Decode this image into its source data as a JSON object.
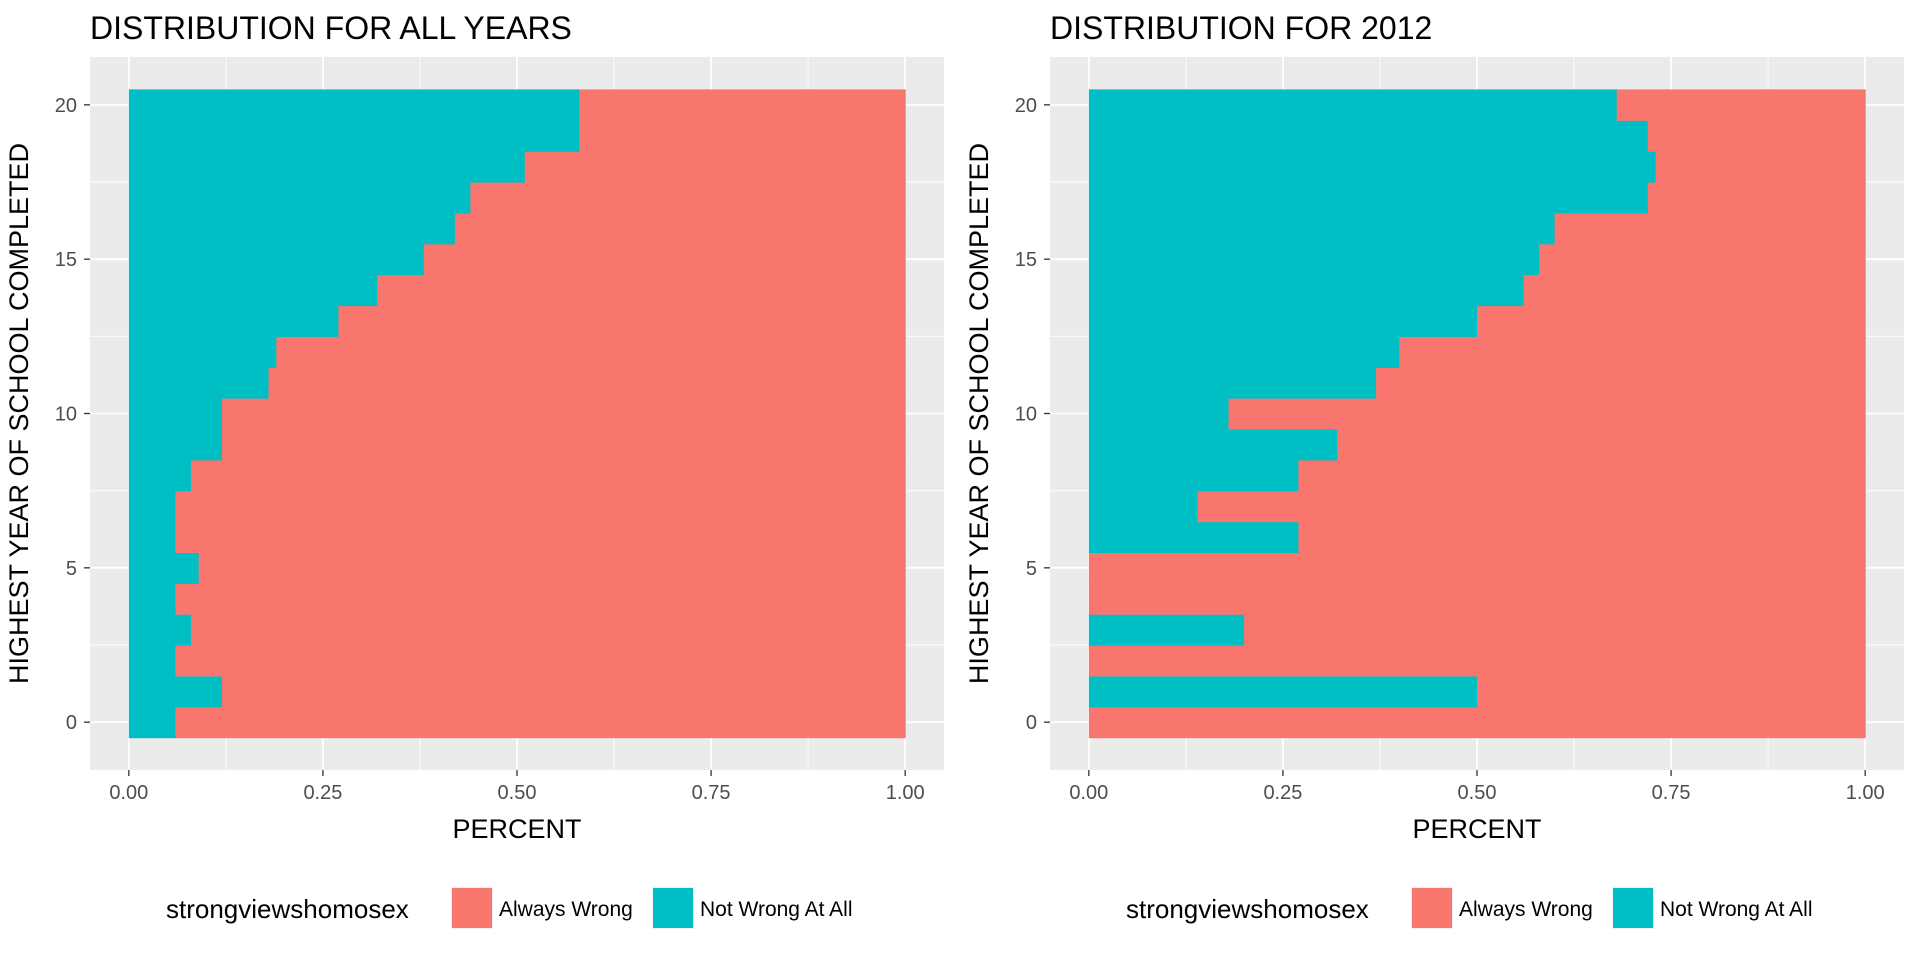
{
  "chart_data": [
    {
      "type": "bar",
      "orientation": "horizontal",
      "stacked": "fill",
      "title": "DISTRIBUTION FOR ALL YEARS",
      "xlabel": "PERCENT",
      "ylabel": "HIGHEST YEAR OF SCHOOL COMPLETED",
      "xlim": [
        0,
        1
      ],
      "ylim": [
        0,
        20
      ],
      "x_ticks": [
        "0.00",
        "0.25",
        "0.50",
        "0.75",
        "1.00"
      ],
      "y_ticks": [
        "0",
        "5",
        "10",
        "15",
        "20"
      ],
      "grid": true,
      "legend": {
        "position": "bottom",
        "title": "strongviewshomosex",
        "labels": [
          "Always Wrong",
          "Not Wrong At All"
        ]
      },
      "categories": [
        0,
        1,
        2,
        3,
        4,
        5,
        6,
        7,
        8,
        9,
        10,
        11,
        12,
        13,
        14,
        15,
        16,
        17,
        18,
        19,
        20
      ],
      "series": [
        {
          "name": "Not Wrong At All",
          "color": "#00BFC4",
          "values": [
            0.06,
            0.12,
            0.06,
            0.08,
            0.06,
            0.09,
            0.06,
            0.06,
            0.08,
            0.12,
            0.12,
            0.18,
            0.19,
            0.27,
            0.32,
            0.38,
            0.42,
            0.44,
            0.51,
            0.58,
            0.58
          ]
        },
        {
          "name": "Always Wrong",
          "color": "#F8766D",
          "values": [
            0.94,
            0.88,
            0.94,
            0.92,
            0.94,
            0.91,
            0.94,
            0.94,
            0.92,
            0.88,
            0.88,
            0.82,
            0.81,
            0.73,
            0.68,
            0.62,
            0.58,
            0.56,
            0.49,
            0.42,
            0.42
          ]
        }
      ]
    },
    {
      "type": "bar",
      "orientation": "horizontal",
      "stacked": "fill",
      "title": "DISTRIBUTION FOR 2012",
      "xlabel": "PERCENT",
      "ylabel": "HIGHEST YEAR OF SCHOOL COMPLETED",
      "xlim": [
        0,
        1
      ],
      "ylim": [
        0,
        20
      ],
      "x_ticks": [
        "0.00",
        "0.25",
        "0.50",
        "0.75",
        "1.00"
      ],
      "y_ticks": [
        "0",
        "5",
        "10",
        "15",
        "20"
      ],
      "grid": true,
      "legend": {
        "position": "bottom",
        "title": "strongviewshomosex",
        "labels": [
          "Always Wrong",
          "Not Wrong At All"
        ]
      },
      "categories": [
        0,
        1,
        2,
        3,
        4,
        5,
        6,
        7,
        8,
        9,
        10,
        11,
        12,
        13,
        14,
        15,
        16,
        17,
        18,
        19,
        20
      ],
      "series": [
        {
          "name": "Not Wrong At All",
          "color": "#00BFC4",
          "values": [
            0,
            0.5,
            0,
            0.2,
            0,
            0,
            0.27,
            0.14,
            0.27,
            0.32,
            0.18,
            0.37,
            0.4,
            0.5,
            0.56,
            0.58,
            0.6,
            0.72,
            0.73,
            0.72,
            0.68
          ]
        },
        {
          "name": "Always Wrong",
          "color": "#F8766D",
          "values": [
            1,
            0.5,
            1,
            0.8,
            1,
            1,
            0.73,
            0.86,
            0.73,
            0.68,
            0.82,
            0.63,
            0.6,
            0.5,
            0.44,
            0.42,
            0.4,
            0.28,
            0.27,
            0.28,
            0.32
          ]
        }
      ]
    }
  ]
}
